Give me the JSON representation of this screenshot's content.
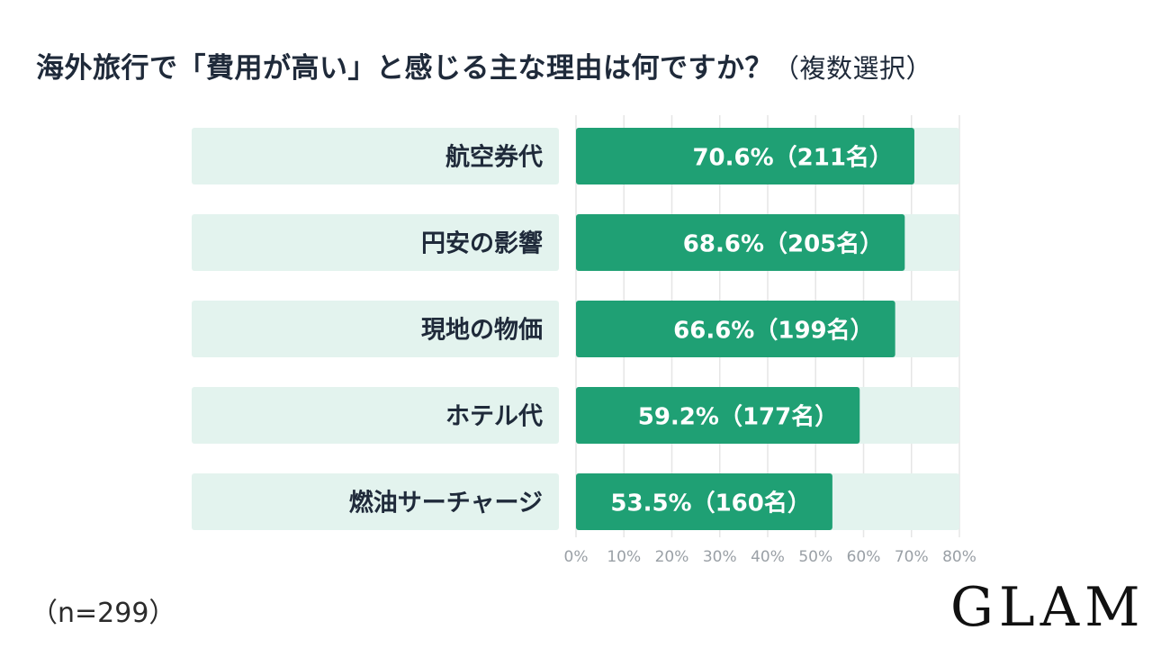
{
  "title": "海外旅行で「費用が高い」と感じる主な理由は何ですか？",
  "subtitle": "（複数選択）",
  "sample_note": "（n=299）",
  "logo": "GLAM",
  "colors": {
    "bar": "#1fa074",
    "track": "#e3f3ee",
    "label_bg": "#e3f3ee",
    "grid": "#e6e6e6"
  },
  "chart_data": {
    "type": "bar",
    "orientation": "horizontal",
    "title": "海外旅行で「費用が高い」と感じる主な理由は何ですか？（複数選択）",
    "categories": [
      "航空券代",
      "円安の影響",
      "現地の物価",
      "ホテル代",
      "燃油サーチャージ"
    ],
    "values": [
      70.6,
      68.6,
      66.6,
      59.2,
      53.5
    ],
    "value_labels": [
      "70.6%（211名）",
      "68.6%（205名）",
      "66.6%（199名）",
      "59.2%（177名）",
      "53.5%（160名）"
    ],
    "counts": [
      211,
      205,
      199,
      177,
      160
    ],
    "xlim": [
      0,
      80
    ],
    "x_ticks": [
      "0%",
      "10%",
      "20%",
      "30%",
      "40%",
      "50%",
      "60%",
      "70%",
      "80%"
    ],
    "grid": true,
    "unit": "%"
  }
}
